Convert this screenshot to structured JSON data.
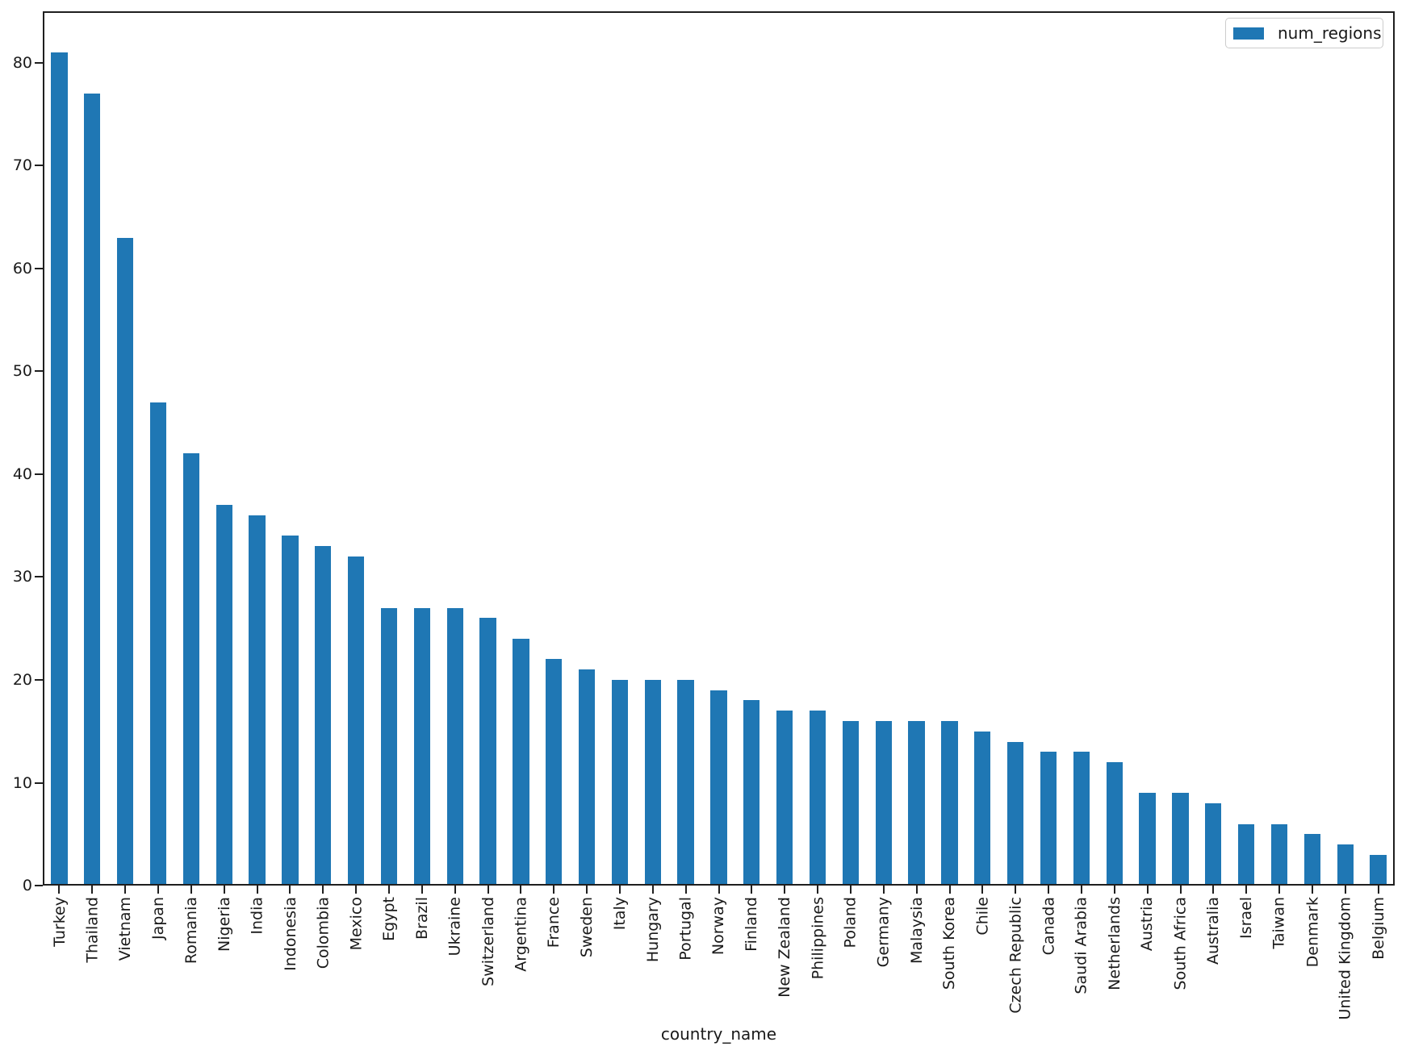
{
  "figure": {
    "background": "#ffffff",
    "frame_color": "#1f1f1f",
    "text_color": "#1a1a1a"
  },
  "chart_data": {
    "type": "bar",
    "title": "",
    "xlabel": "country_name",
    "ylabel": "",
    "grid": false,
    "bar_color": "#1f77b4",
    "bar_width_fraction": 0.5,
    "ylim": [
      0,
      85
    ],
    "yticks": [
      0,
      10,
      20,
      30,
      40,
      50,
      60,
      70,
      80
    ],
    "legend": {
      "label": "num_regions",
      "position": "upper right",
      "swatch_color": "#1f77b4"
    },
    "categories": [
      "Turkey",
      "Thailand",
      "Vietnam",
      "Japan",
      "Romania",
      "Nigeria",
      "India",
      "Indonesia",
      "Colombia",
      "Mexico",
      "Egypt",
      "Brazil",
      "Ukraine",
      "Switzerland",
      "Argentina",
      "France",
      "Sweden",
      "Italy",
      "Hungary",
      "Portugal",
      "Norway",
      "Finland",
      "New Zealand",
      "Philippines",
      "Poland",
      "Germany",
      "Malaysia",
      "South Korea",
      "Chile",
      "Czech Republic",
      "Canada",
      "Saudi Arabia",
      "Netherlands",
      "Austria",
      "South Africa",
      "Australia",
      "Israel",
      "Taiwan",
      "Denmark",
      "United Kingdom",
      "Belgium"
    ],
    "values": [
      81,
      77,
      63,
      47,
      42,
      37,
      36,
      34,
      33,
      32,
      27,
      27,
      27,
      26,
      24,
      22,
      21,
      20,
      20,
      20,
      19,
      18,
      17,
      17,
      16,
      16,
      16,
      16,
      15,
      14,
      13,
      13,
      12,
      9,
      9,
      8,
      6,
      6,
      5,
      4,
      3
    ]
  }
}
